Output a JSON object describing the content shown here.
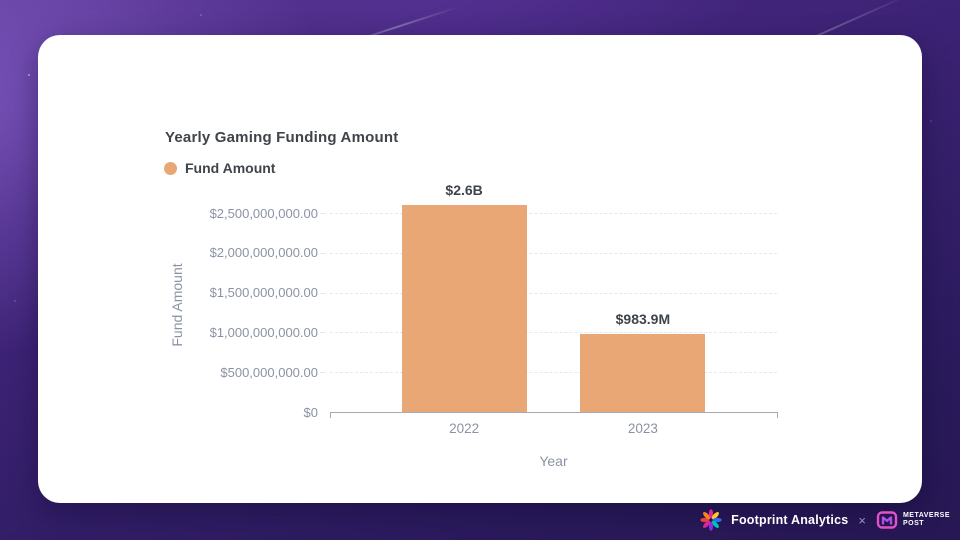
{
  "chart_data": {
    "type": "bar",
    "title": "Yearly Gaming Funding Amount",
    "legend": [
      {
        "label": "Fund Amount"
      }
    ],
    "legend_position": "top-left",
    "xlabel": "Year",
    "ylabel": "Fund Amount",
    "categories": [
      "2022",
      "2023"
    ],
    "series": [
      {
        "name": "Fund Amount",
        "values": [
          2600000000,
          983900000
        ]
      }
    ],
    "value_labels": [
      "$2.6B",
      "$983.9M"
    ],
    "ylim": [
      0,
      2500000000
    ],
    "y_ticks": [
      {
        "value": 2500000000,
        "label": "$2,500,000,000.00"
      },
      {
        "value": 2000000000,
        "label": "$2,000,000,000.00"
      },
      {
        "value": 1500000000,
        "label": "$1,500,000,000.00"
      },
      {
        "value": 1000000000,
        "label": "$1,000,000,000.00"
      },
      {
        "value": 500000000,
        "label": "$500,000,000.00"
      },
      {
        "value": 0,
        "label": "$0"
      }
    ],
    "grid": "horizontal-dashed"
  },
  "footer": {
    "footprint_label": "Footprint Analytics",
    "separator": "×",
    "metaverse_line1": "METAVERSE",
    "metaverse_line2": "POST"
  },
  "colors": {
    "bar": "#E8A775",
    "axis_text": "#8C92A6",
    "label_text": "#3F444B",
    "gridline": "#E7E8EF",
    "axis_line": "#A6AAB4",
    "card": "#FFFFFF",
    "footer_background": "#2A1A5C"
  }
}
